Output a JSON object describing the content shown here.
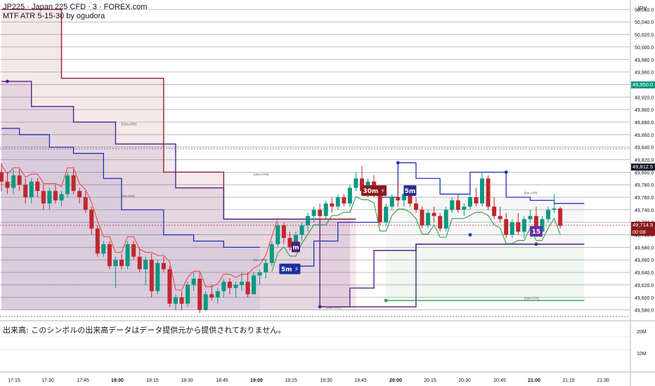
{
  "legend": {
    "title": "JP225 · Japan 225 CFD · 3 · FOREX.com",
    "indicator": "MTF ATR 5-15-30 by ogudora"
  },
  "volume_note": "出来高: このシンボルの出来高データはデータ提供元から提供されておりません。",
  "price_badges": {
    "current_price": "49,714.5",
    "countdown": "00:08",
    "marked_price": "49,950.0",
    "dark_price": "49,812.5"
  },
  "colors": {
    "up": "#089981",
    "down": "#c1272d",
    "atr30": "#9b1d2c",
    "atr15": "#5b1f8a",
    "atr5": "#2231b8",
    "fast_red": "#e84a4a",
    "fast_green": "#2ea043",
    "badge_green": "#089981",
    "badge_red": "#8b1a1a",
    "badge_dark": "#131722"
  },
  "chart_data": {
    "type": "candlestick",
    "symbol": "JP225 · Japan 225 CFD · 3 · FOREX.com",
    "currency": "JPY",
    "y_ticks": [
      "50,060.0",
      "50,040.0",
      "50,020.0",
      "50,000.0",
      "49,980.0",
      "49,960.0",
      "49,940.0",
      "49,920.0",
      "49,900.0",
      "49,880.0",
      "49,860.0",
      "49,840.0",
      "49,820.0",
      "49,800.0",
      "49,780.0",
      "49,760.0",
      "49,740.0",
      "49,720.0",
      "49,700.0",
      "49,680.0",
      "49,660.0",
      "49,640.0",
      "49,620.0",
      "49,600.0",
      "49,580.0"
    ],
    "ylim": [
      49565,
      50075
    ],
    "x_ticks": [
      "17:15",
      "17:30",
      "17:45",
      "18:00",
      "18:15",
      "18:30",
      "18:45",
      "19:00",
      "19:15",
      "19:30",
      "19:45",
      "20:00",
      "20:15",
      "20:30",
      "20:45",
      "21:00",
      "21:15",
      "21:30"
    ],
    "bold_x_ticks": [
      "18:00",
      "19:00",
      "20:00",
      "21:00"
    ],
    "volume_axis_labels": [
      "20M",
      "10M"
    ],
    "candles": [
      [
        49800,
        49815,
        49770,
        49785
      ],
      [
        49785,
        49800,
        49765,
        49775
      ],
      [
        49775,
        49805,
        49765,
        49795
      ],
      [
        49795,
        49805,
        49770,
        49780
      ],
      [
        49780,
        49790,
        49750,
        49760
      ],
      [
        49760,
        49790,
        49750,
        49785
      ],
      [
        49785,
        49790,
        49760,
        49770
      ],
      [
        49770,
        49780,
        49740,
        49750
      ],
      [
        49750,
        49775,
        49740,
        49770
      ],
      [
        49770,
        49780,
        49750,
        49755
      ],
      [
        49755,
        49770,
        49745,
        49765
      ],
      [
        49765,
        49800,
        49760,
        49795
      ],
      [
        49795,
        49805,
        49765,
        49770
      ],
      [
        49770,
        49775,
        49750,
        49760
      ],
      [
        49760,
        49770,
        49735,
        49740
      ],
      [
        49740,
        49745,
        49700,
        49710
      ],
      [
        49710,
        49715,
        49665,
        49670
      ],
      [
        49670,
        49690,
        49665,
        49685
      ],
      [
        49685,
        49690,
        49645,
        49650
      ],
      [
        49650,
        49665,
        49615,
        49660
      ],
      [
        49660,
        49670,
        49645,
        49650
      ],
      [
        49650,
        49690,
        49645,
        49685
      ],
      [
        49685,
        49690,
        49660,
        49665
      ],
      [
        49665,
        49680,
        49640,
        49645
      ],
      [
        49645,
        49665,
        49620,
        49660
      ],
      [
        49660,
        49670,
        49600,
        49610
      ],
      [
        49610,
        49660,
        49605,
        49655
      ],
      [
        49655,
        49665,
        49640,
        49645
      ],
      [
        49645,
        49650,
        49585,
        49590
      ],
      [
        49590,
        49605,
        49580,
        49600
      ],
      [
        49600,
        49610,
        49580,
        49590
      ],
      [
        49590,
        49625,
        49585,
        49620
      ],
      [
        49620,
        49640,
        49610,
        49630
      ],
      [
        49630,
        49640,
        49575,
        49580
      ],
      [
        49580,
        49610,
        49578,
        49605
      ],
      [
        49605,
        49620,
        49595,
        49600
      ],
      [
        49600,
        49615,
        49590,
        49610
      ],
      [
        49610,
        49630,
        49600,
        49625
      ],
      [
        49625,
        49630,
        49605,
        49615
      ],
      [
        49615,
        49625,
        49600,
        49620
      ],
      [
        49620,
        49640,
        49610,
        49625
      ],
      [
        49625,
        49640,
        49600,
        49605
      ],
      [
        49605,
        49640,
        49605,
        49635
      ],
      [
        49635,
        49645,
        49620,
        49640
      ],
      [
        49640,
        49660,
        49630,
        49655
      ],
      [
        49655,
        49690,
        49650,
        49685
      ],
      [
        49685,
        49720,
        49680,
        49715
      ],
      [
        49715,
        49720,
        49685,
        49695
      ],
      [
        49695,
        49705,
        49675,
        49680
      ],
      [
        49680,
        49705,
        49675,
        49700
      ],
      [
        49700,
        49720,
        49690,
        49715
      ],
      [
        49715,
        49735,
        49705,
        49730
      ],
      [
        49730,
        49745,
        49720,
        49740
      ],
      [
        49740,
        49750,
        49725,
        49730
      ],
      [
        49730,
        49755,
        49725,
        49750
      ],
      [
        49750,
        49760,
        49735,
        49745
      ],
      [
        49745,
        49765,
        49740,
        49760
      ],
      [
        49760,
        49765,
        49745,
        49750
      ],
      [
        49750,
        49780,
        49745,
        49775
      ],
      [
        49775,
        49800,
        49770,
        49790
      ],
      [
        49790,
        49810,
        49765,
        49770
      ],
      [
        49770,
        49790,
        49760,
        49785
      ],
      [
        49785,
        49795,
        49760,
        49765
      ],
      [
        49765,
        49770,
        49715,
        49720
      ],
      [
        49720,
        49750,
        49715,
        49745
      ],
      [
        49745,
        49765,
        49740,
        49760
      ],
      [
        49760,
        49790,
        49745,
        49755
      ],
      [
        49755,
        49770,
        49745,
        49765
      ],
      [
        49765,
        49775,
        49745,
        49750
      ],
      [
        49750,
        49760,
        49735,
        49740
      ],
      [
        49740,
        49745,
        49710,
        49715
      ],
      [
        49715,
        49740,
        49710,
        49735
      ],
      [
        49735,
        49745,
        49720,
        49730
      ],
      [
        49730,
        49735,
        49705,
        49710
      ],
      [
        49710,
        49745,
        49705,
        49740
      ],
      [
        49740,
        49760,
        49735,
        49755
      ],
      [
        49755,
        49765,
        49735,
        49740
      ],
      [
        49740,
        49750,
        49730,
        49745
      ],
      [
        49745,
        49765,
        49740,
        49760
      ],
      [
        49760,
        49775,
        49745,
        49750
      ],
      [
        49750,
        49800,
        49745,
        49790
      ],
      [
        49790,
        49795,
        49740,
        49745
      ],
      [
        49745,
        49760,
        49725,
        49730
      ],
      [
        49730,
        49745,
        49720,
        49725
      ],
      [
        49725,
        49735,
        49695,
        49700
      ],
      [
        49700,
        49725,
        49695,
        49720
      ],
      [
        49720,
        49735,
        49700,
        49705
      ],
      [
        49705,
        49730,
        49695,
        49725
      ],
      [
        49725,
        49740,
        49720,
        49730
      ],
      [
        49730,
        49745,
        49700,
        49705
      ],
      [
        49705,
        49730,
        49700,
        49725
      ],
      [
        49725,
        49745,
        49720,
        49740
      ],
      [
        49740,
        49765,
        49735,
        49742
      ],
      [
        49742,
        49745,
        49710,
        49714.5
      ]
    ],
    "atr30_levels": [
      {
        "x0": 0,
        "x1": 10,
        "y": 50060
      },
      {
        "x0": 10,
        "x1": 27,
        "y": 49950
      },
      {
        "x0": 27,
        "x1": 37,
        "y": 49800
      },
      {
        "x0": 37,
        "x1": 59,
        "y": 49725
      }
    ],
    "atr15_levels": [
      {
        "x0": 0,
        "x1": 5,
        "y": 49945
      },
      {
        "x0": 5,
        "x1": 12,
        "y": 49905
      },
      {
        "x0": 12,
        "x1": 19,
        "y": 49880
      },
      {
        "x0": 19,
        "x1": 29,
        "y": 49845
      },
      {
        "x0": 29,
        "x1": 37,
        "y": 49775
      },
      {
        "x0": 37,
        "x1": 53,
        "y": 49725
      },
      {
        "x0": 53,
        "x1": 69,
        "y": 49585
      },
      {
        "x0": 69,
        "x1": 97,
        "y": 49685
      }
    ],
    "atr15_lower": [
      {
        "x0": 53,
        "x1": 58,
        "y": 49585
      },
      {
        "x0": 58,
        "x1": 62,
        "y": 49615
      },
      {
        "x0": 62,
        "x1": 69,
        "y": 49675
      },
      {
        "x0": 69,
        "x1": 97,
        "y": 49685
      }
    ],
    "atr5_upper": [
      {
        "x0": 0,
        "x1": 3,
        "y": 49870
      },
      {
        "x0": 3,
        "x1": 8,
        "y": 49860
      },
      {
        "x0": 8,
        "x1": 12,
        "y": 49840
      },
      {
        "x0": 12,
        "x1": 17,
        "y": 49830
      },
      {
        "x0": 17,
        "x1": 20,
        "y": 49790
      },
      {
        "x0": 20,
        "x1": 27,
        "y": 49740
      },
      {
        "x0": 27,
        "x1": 32,
        "y": 49700
      },
      {
        "x0": 32,
        "x1": 37,
        "y": 49690
      },
      {
        "x0": 37,
        "x1": 43,
        "y": 49680
      }
    ],
    "atr5_lower_after": [
      {
        "x0": 47,
        "x1": 52,
        "y": 49650
      },
      {
        "x0": 52,
        "x1": 56,
        "y": 49690
      },
      {
        "x0": 56,
        "x1": 63,
        "y": 49720
      },
      {
        "x0": 63,
        "x1": 66,
        "y": 49760
      },
      {
        "x0": 66,
        "x1": 69,
        "y": 49815
      },
      {
        "x0": 69,
        "x1": 73,
        "y": 49790
      },
      {
        "x0": 73,
        "x1": 78,
        "y": 49765
      },
      {
        "x0": 78,
        "x1": 84,
        "y": 49800
      },
      {
        "x0": 84,
        "x1": 88,
        "y": 49760
      },
      {
        "x0": 88,
        "x1": 92,
        "y": 49755
      },
      {
        "x0": 92,
        "x1": 97,
        "y": 49750
      }
    ],
    "atr30_lower": [
      {
        "x0": 64,
        "x1": 97,
        "y": 49595
      }
    ],
    "dots": [
      {
        "x": 1,
        "y": 49945,
        "series": "atr15"
      },
      {
        "x": 53,
        "y": 49585,
        "series": "atr15"
      },
      {
        "x": 64,
        "y": 49595,
        "series": "atr30"
      },
      {
        "x": 66,
        "y": 49815,
        "series": "atr5"
      },
      {
        "x": 78,
        "y": 49700,
        "series": "atr5"
      },
      {
        "x": 84,
        "y": 49800,
        "series": "atr5"
      },
      {
        "x": 89,
        "y": 49685,
        "series": "atr15"
      }
    ],
    "markers": [
      {
        "x": 62,
        "y": 49770,
        "label": "30m ⚡",
        "color": "#8b1a1a"
      },
      {
        "x": 68,
        "y": 49770,
        "label": "5m",
        "color": "#2e2a8f"
      },
      {
        "x": 49,
        "y": 49680,
        "label": "m",
        "color": "#4b1f7a"
      },
      {
        "x": 48,
        "y": 49645,
        "label": "5m ⚡",
        "color": "#1c2fa3"
      },
      {
        "x": 89,
        "y": 49705,
        "label": "15",
        "color": "#6a2ea6"
      }
    ],
    "level_tags": [
      {
        "x": 20,
        "y": 49875,
        "text": "[15m ATR]"
      },
      {
        "x": 20,
        "y": 49760,
        "text": "[5m ATR]"
      },
      {
        "x": 42,
        "y": 49795,
        "text": "[30m ATR]"
      },
      {
        "x": 42,
        "y": 49658,
        "text": "[5m ATR]"
      },
      {
        "x": 54,
        "y": 49582,
        "text": "[15m ATR]"
      },
      {
        "x": 87,
        "y": 49765,
        "text": "[5m ATR]"
      },
      {
        "x": 87,
        "y": 49597,
        "text": "[30m ATR]"
      }
    ]
  }
}
